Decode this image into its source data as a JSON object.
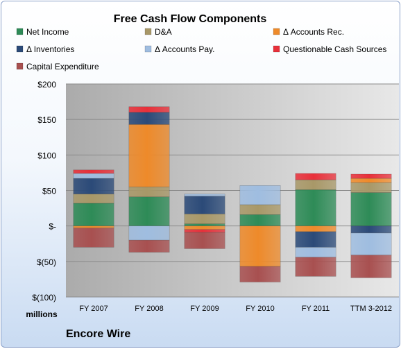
{
  "chart_data": {
    "type": "bar",
    "stacked": true,
    "title": "Free Cash Flow Components",
    "ylabel": "millions",
    "footer": "Encore Wire",
    "categories": [
      "FY 2007",
      "FY 2008",
      "FY 2009",
      "FY 2010",
      "FY 2011",
      "TTM 3-2012"
    ],
    "ylim": [
      -100,
      200
    ],
    "yticks": [
      -100,
      -50,
      0,
      50,
      100,
      150,
      200
    ],
    "ytick_labels": [
      "$(100)",
      "$(50)",
      "$-",
      "$50",
      "$100",
      "$150",
      "$200"
    ],
    "grid": true,
    "legend_position": "top",
    "series": [
      {
        "name": "Net Income",
        "color": "#2e8b57",
        "values": [
          32,
          41,
          3,
          16,
          51,
          47
        ]
      },
      {
        "name": "D&A",
        "color": "#a89868",
        "values": [
          13,
          14,
          14,
          14,
          14,
          14
        ]
      },
      {
        "name": "Δ Accounts Rec.",
        "color": "#ee8a2a",
        "values": [
          -3,
          88,
          -5,
          -57,
          -8,
          6
        ]
      },
      {
        "name": "Δ Inventories",
        "color": "#2b4a78",
        "values": [
          22,
          17,
          25,
          0,
          -22,
          -10
        ]
      },
      {
        "name": "Δ Accounts Pay.",
        "color": "#9fbde0",
        "values": [
          7,
          -20,
          3,
          27,
          -14,
          -31
        ]
      },
      {
        "name": "Questionable Cash Sources",
        "color": "#e8303a",
        "values": [
          5,
          8,
          -4,
          0,
          9,
          6
        ]
      },
      {
        "name": "Capital Expenditure",
        "color": "#a85050",
        "values": [
          -27,
          -17,
          -23,
          -22,
          -27,
          -32
        ]
      }
    ]
  }
}
